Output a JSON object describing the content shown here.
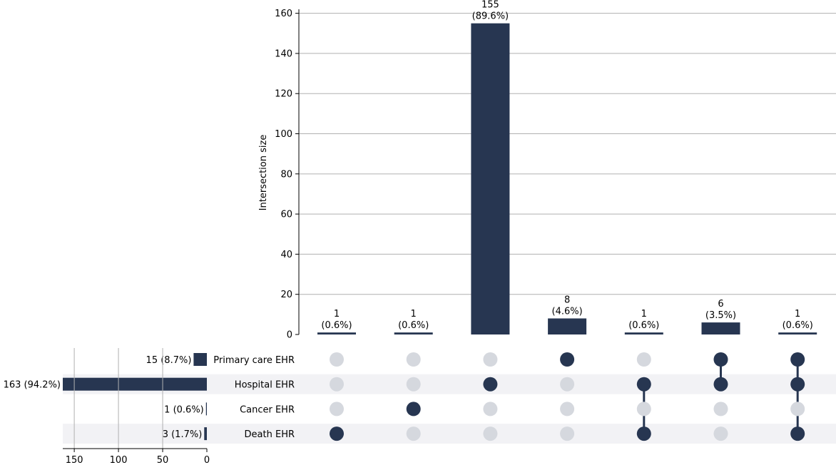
{
  "chart_data": {
    "type": "bar",
    "chart_kind": "upset",
    "ylabel": "Intersection size",
    "ylim": [
      0,
      162
    ],
    "yticks": [
      0,
      20,
      40,
      60,
      80,
      100,
      120,
      140,
      160
    ],
    "grid": true,
    "colors": {
      "bar": "#273651",
      "dot_active": "#273651",
      "dot_inactive": "#d5d8de",
      "grid": "#b0b0b0",
      "stripe": "#f2f2f5"
    },
    "sets": [
      "Primary care EHR",
      "Hospital EHR",
      "Cancer EHR",
      "Death EHR"
    ],
    "set_sizes": [
      15,
      163,
      1,
      3
    ],
    "set_size_labels": [
      "15 (8.7%)",
      "163 (94.2%)",
      "1 (0.6%)",
      "3 (1.7%)"
    ],
    "set_size_xlim": [
      0,
      163
    ],
    "set_size_xticks": [
      150,
      100,
      50,
      0
    ],
    "intersections": [
      {
        "members": [
          3
        ],
        "size": 1,
        "count_label": "1",
        "pct_label": "(0.6%)"
      },
      {
        "members": [
          2
        ],
        "size": 1,
        "count_label": "1",
        "pct_label": "(0.6%)"
      },
      {
        "members": [
          1
        ],
        "size": 155,
        "count_label": "155",
        "pct_label": "(89.6%)"
      },
      {
        "members": [
          0
        ],
        "size": 8,
        "count_label": "8",
        "pct_label": "(4.6%)"
      },
      {
        "members": [
          1,
          3
        ],
        "size": 1,
        "count_label": "1",
        "pct_label": "(0.6%)"
      },
      {
        "members": [
          0,
          1
        ],
        "size": 6,
        "count_label": "6",
        "pct_label": "(3.5%)"
      },
      {
        "members": [
          0,
          1,
          3
        ],
        "size": 1,
        "count_label": "1",
        "pct_label": "(0.6%)"
      }
    ]
  }
}
